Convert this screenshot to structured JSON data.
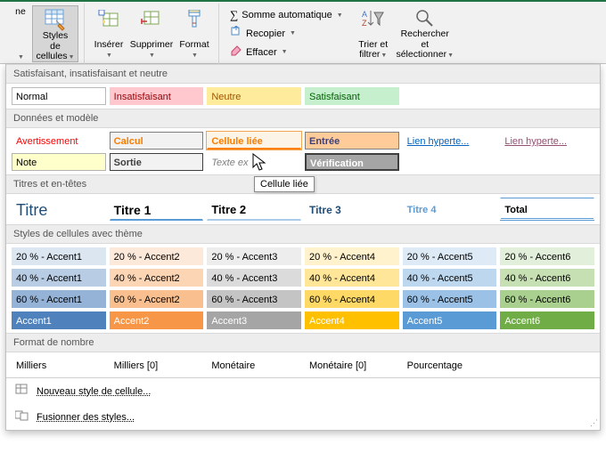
{
  "ribbon": {
    "styles_cellules": "Styles de cellules",
    "inserer": "Insérer",
    "supprimer": "Supprimer",
    "format": "Format",
    "somme_auto": "Somme automatique",
    "recopier": "Recopier",
    "effacer": "Effacer",
    "trier_filtrer": "Trier et filtrer",
    "rechercher_sel": "Rechercher et sélectionner",
    "ne_label": "ne"
  },
  "sections": {
    "s1": "Satisfaisant, insatisfaisant et neutre",
    "s2": "Données et modèle",
    "s3": "Titres et en-têtes",
    "s4": "Styles de cellules avec thème",
    "s5": "Format de nombre"
  },
  "s1cells": {
    "normal": "Normal",
    "insatisfaisant": "Insatisfaisant",
    "neutre": "Neutre",
    "satisfaisant": "Satisfaisant"
  },
  "s2cells": {
    "avertissement": "Avertissement",
    "calcul": "Calcul",
    "cellule_liee": "Cellule liée",
    "entree": "Entrée",
    "lien1": "Lien hyperte...",
    "lien2": "Lien hyperte...",
    "note": "Note",
    "sortie": "Sortie",
    "texte_ex": "Texte ex",
    "verification": "Vérification"
  },
  "s3cells": {
    "titre": "Titre",
    "titre1": "Titre 1",
    "titre2": "Titre 2",
    "titre3": "Titre 3",
    "titre4": "Titre 4",
    "total": "Total"
  },
  "accent_label_20": "20 % - Accent",
  "accent_label_40": "40 % - Accent",
  "accent_label_60": "60 % - Accent",
  "accent_label_full": "Accent",
  "accent_colors": {
    "a1_20": "#dce6f1",
    "a1_40": "#b8cce4",
    "a1_60": "#95b3d7",
    "a1": "#4f81bd",
    "a2_20": "#fde9d9",
    "a2_40": "#fcd5b4",
    "a2_60": "#fabf8f",
    "a2": "#f79646",
    "a3_20": "#ededed",
    "a3_40": "#dbdbdb",
    "a3_60": "#c4c4c4",
    "a3": "#a5a5a5",
    "a4_20": "#fff2cc",
    "a4_40": "#ffe699",
    "a4_60": "#ffd966",
    "a4": "#ffc000",
    "a5_20": "#deebf7",
    "a5_40": "#bdd7ee",
    "a5_60": "#9bc2e6",
    "a5": "#5b9bd5",
    "a6_20": "#e2efda",
    "a6_40": "#c6e0b4",
    "a6_60": "#a9d08e",
    "a6": "#70ad47"
  },
  "s5cells": {
    "milliers": "Milliers",
    "milliers0": "Milliers [0]",
    "monetaire": "Monétaire",
    "monetaire0": "Monétaire [0]",
    "pourcentage": "Pourcentage"
  },
  "footer": {
    "nouveau": "Nouveau style de cellule...",
    "fusionner": "Fusionner des styles..."
  },
  "tooltip": "Cellule liée",
  "style_colors": {
    "insatisfaisant_bg": "#ffc7ce",
    "insatisfaisant_fg": "#9c0006",
    "neutre_bg": "#ffeb9c",
    "neutre_fg": "#9c5700",
    "satisfaisant_bg": "#c6efce",
    "satisfaisant_fg": "#006100",
    "avertissement_fg": "#ff0000",
    "calcul_bg": "#f2f2f2",
    "calcul_fg": "#fa7d00",
    "calcul_border": "#7f7f7f",
    "cellule_liee_fg": "#fa7d00",
    "cellule_liee_border_bottom": "#ff8001",
    "entree_bg": "#ffcc99",
    "entree_fg": "#3f3f76",
    "entree_border": "#7f7f7f",
    "note_bg": "#ffffcc",
    "note_border": "#b2b2b2",
    "sortie_bg": "#f2f2f2",
    "sortie_fg": "#3f3f3f",
    "sortie_border": "#3f3f3f",
    "texte_ex_fg": "#7f7f7f",
    "verif_bg": "#a5a5a5",
    "verif_fg": "#ffffff",
    "verif_border": "#3f3f3f"
  }
}
